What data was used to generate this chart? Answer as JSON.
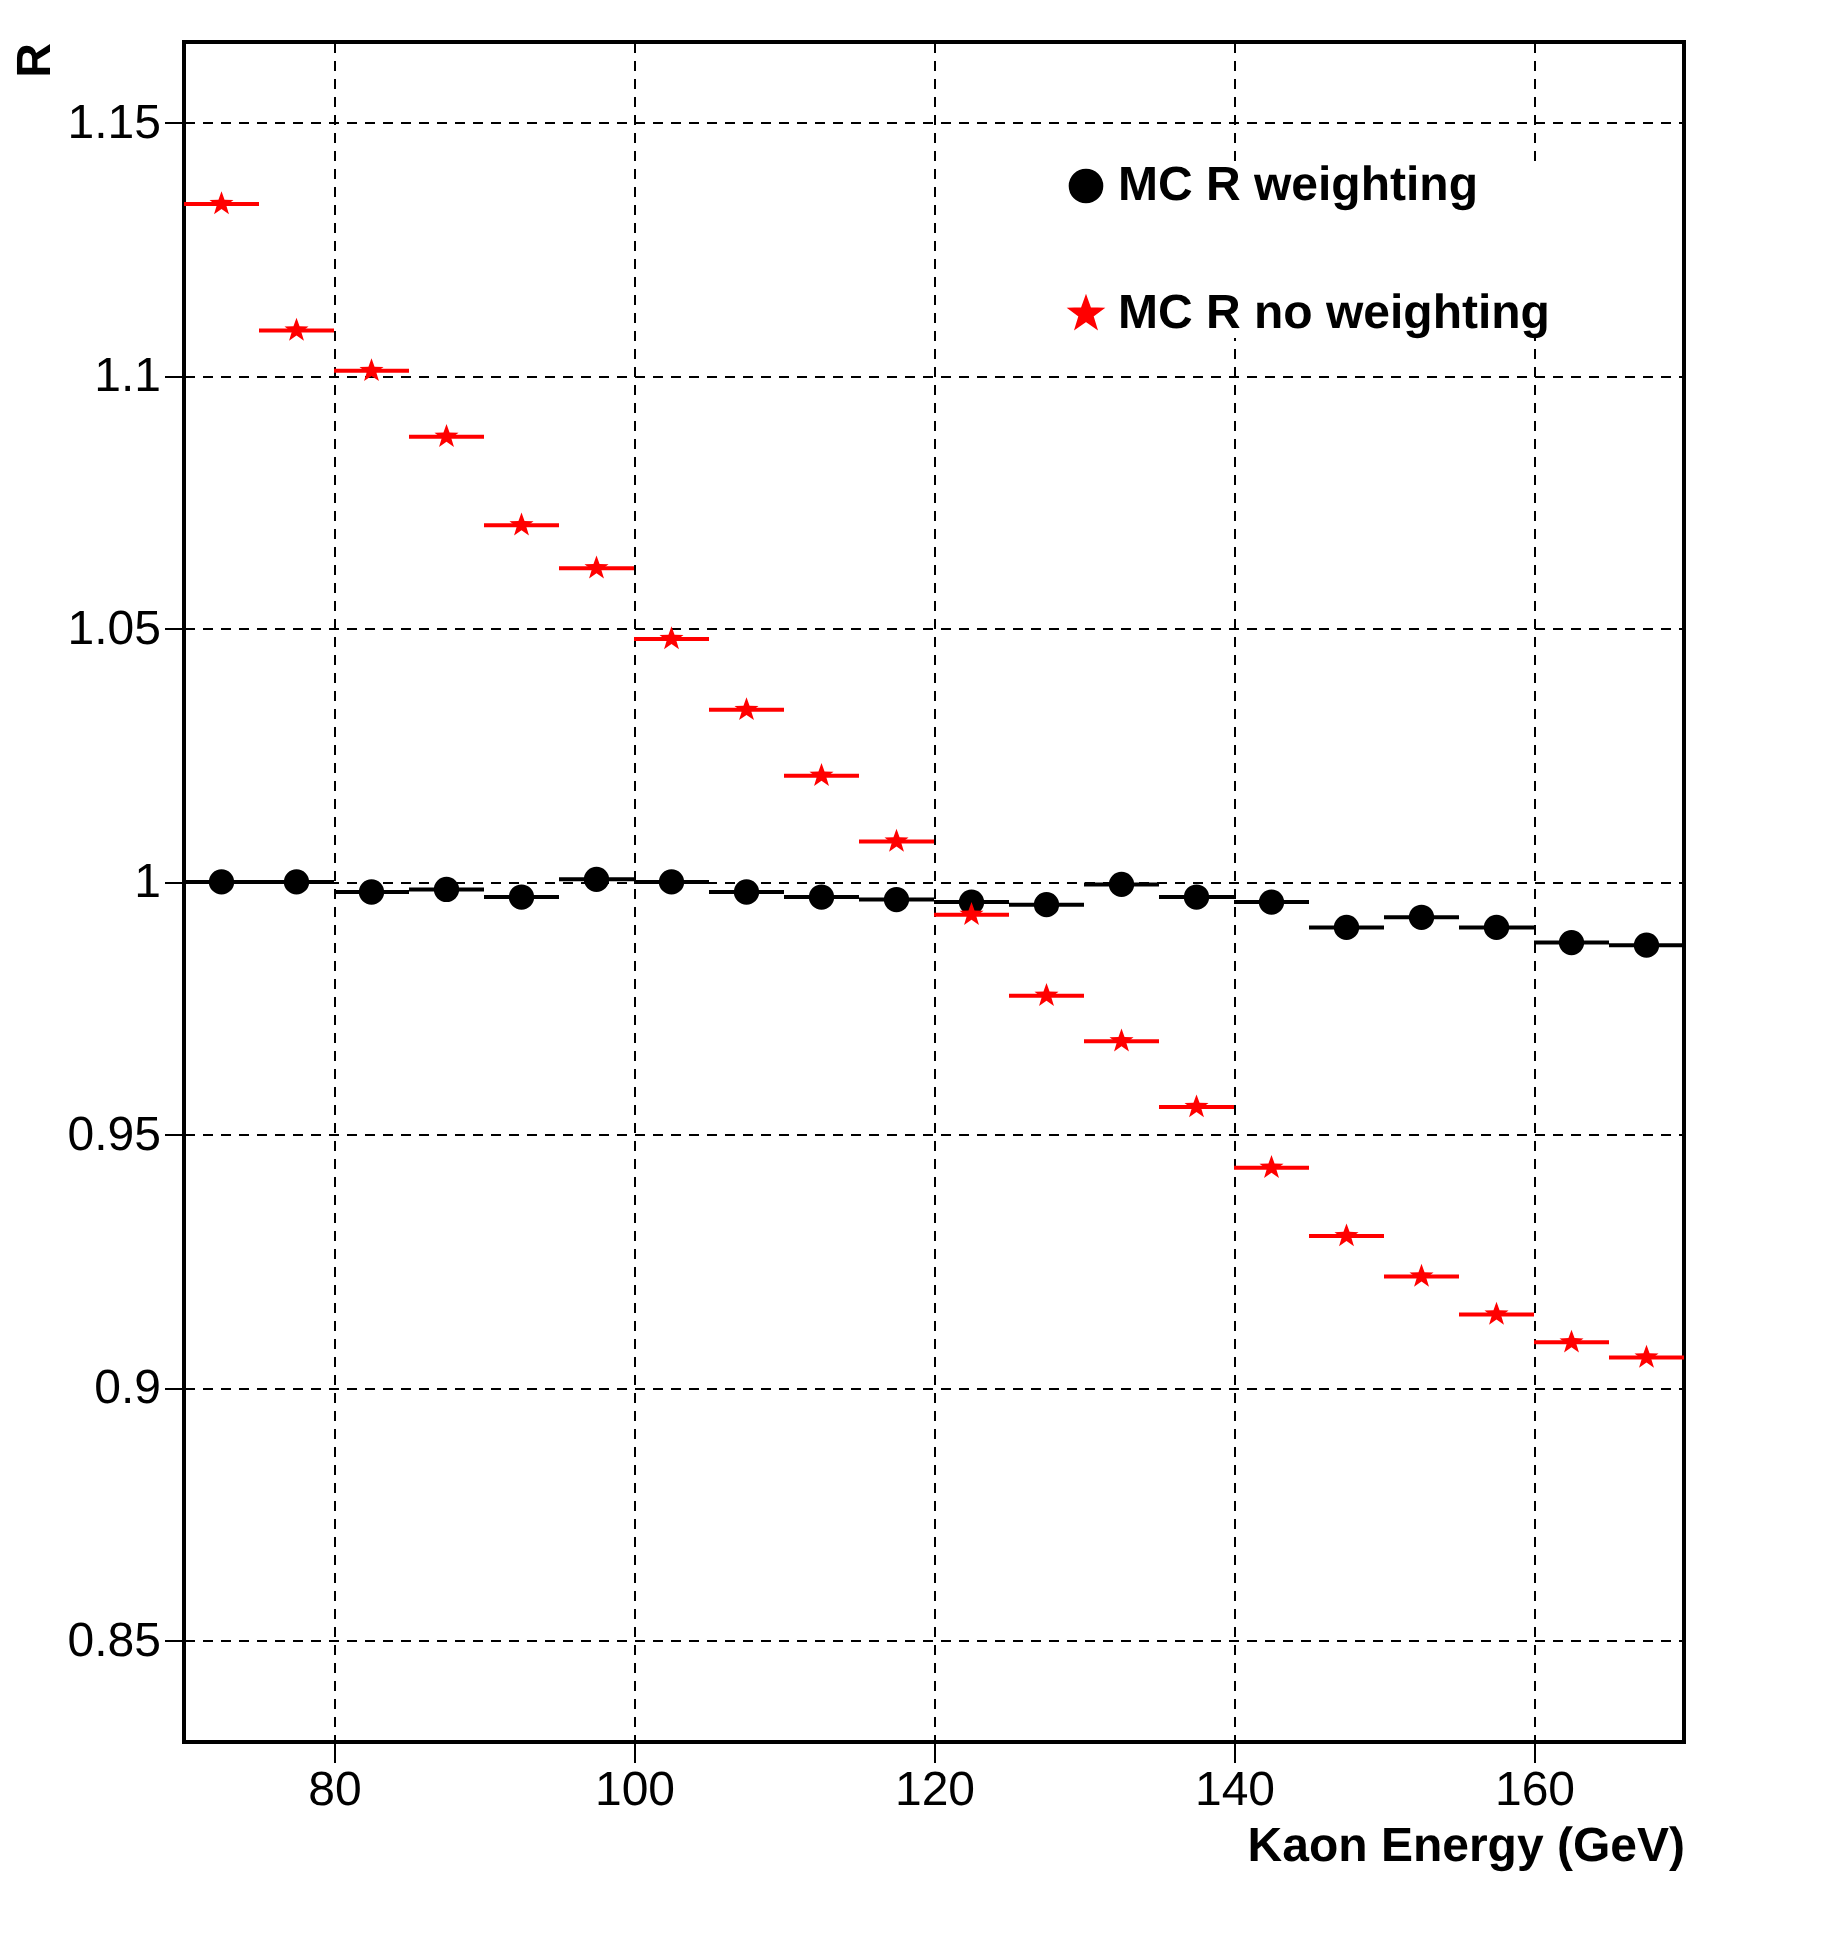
{
  "chart_data": {
    "type": "scatter",
    "xlabel": "Kaon Energy (GeV)",
    "ylabel": "R",
    "x": [
      72.5,
      77.5,
      82.5,
      87.5,
      92.5,
      97.5,
      102.5,
      107.5,
      112.5,
      117.5,
      122.5,
      127.5,
      132.5,
      137.5,
      142.5,
      147.5,
      152.5,
      157.5,
      162.5,
      167.5
    ],
    "series": [
      {
        "name": "MC R weighting",
        "color": "#000000",
        "marker": "circle",
        "xerrors": [
          2.5,
          2.5,
          2.5,
          2.5,
          2.5,
          2.5,
          2.5,
          2.5,
          2.5,
          2.5,
          2.5,
          2.5,
          2.5,
          2.5,
          2.5,
          2.5,
          2.5,
          2.5,
          2.5,
          2.5
        ],
        "values": [
          1.0,
          1.0,
          0.998,
          0.9985,
          0.997,
          1.0005,
          1.0,
          0.998,
          0.997,
          0.9965,
          0.996,
          0.9955,
          0.9995,
          0.997,
          0.996,
          0.991,
          0.993,
          0.991,
          0.988,
          0.9875
        ]
      },
      {
        "name": "MC R  no weighting",
        "color": "#ff0000",
        "marker": "star",
        "xerrors": [
          2.5,
          2.5,
          2.5,
          2.5,
          2.5,
          2.5,
          2.5,
          2.5,
          2.5,
          2.5,
          2.5,
          2.5,
          2.5,
          2.5,
          2.5,
          2.5,
          2.5,
          2.5,
          2.5,
          2.5
        ],
        "values": [
          1.134,
          1.109,
          1.101,
          1.088,
          1.0705,
          1.062,
          1.048,
          1.034,
          1.021,
          1.008,
          0.9935,
          0.9775,
          0.9685,
          0.9555,
          0.9435,
          0.93,
          0.922,
          0.9145,
          0.909,
          0.906
        ]
      }
    ],
    "xlim": [
      70,
      170
    ],
    "ylim": [
      0.83,
      1.166
    ],
    "xticks": [
      80,
      100,
      120,
      140,
      160
    ],
    "yticks": [
      0.85,
      0.9,
      0.95,
      1,
      1.05,
      1.1,
      1.15
    ],
    "grid": true,
    "legend": "top right"
  }
}
